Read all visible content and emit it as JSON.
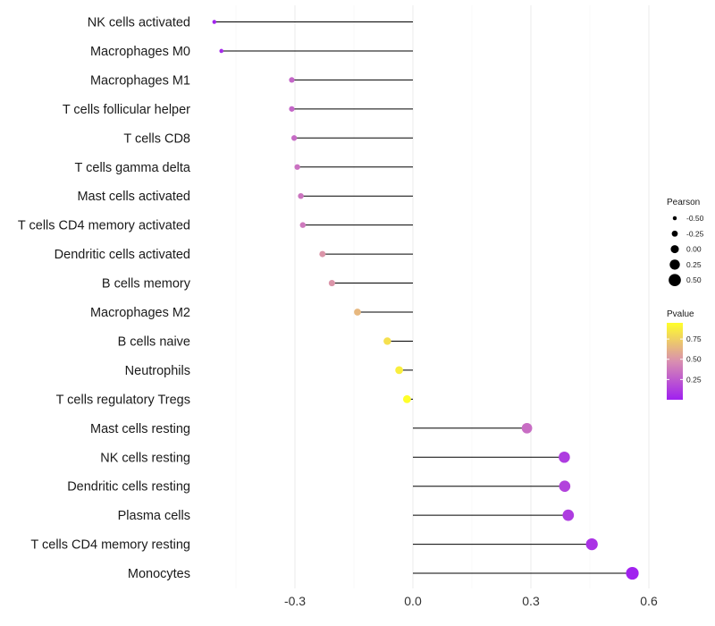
{
  "chart_data": {
    "type": "lollipop",
    "title": "",
    "xlabel": "",
    "ylabel": "",
    "xlim": [
      -0.62,
      0.62
    ],
    "x_ticks": [
      -0.3,
      0.0,
      0.3,
      0.6
    ],
    "x_tick_labels": [
      "-0.3",
      "0.0",
      "0.3",
      "0.6"
    ],
    "x_minor_gridlines": [
      -0.45,
      -0.15,
      0.15,
      0.45
    ],
    "grid": true,
    "baseline": 0,
    "categories": [
      "NK cells activated",
      "Macrophages M0",
      "Macrophages M1",
      "T cells follicular helper",
      "T cells CD8",
      "T cells gamma delta",
      "Mast cells activated",
      "T cells CD4 memory activated",
      "Dendritic cells activated",
      "B cells memory",
      "Macrophages M2",
      "B cells naive",
      "Neutrophils",
      "T cells regulatory  Tregs ",
      "Mast cells resting",
      "NK cells resting",
      "Dendritic cells resting",
      "Plasma cells",
      "T cells CD4 memory resting",
      "Monocytes"
    ],
    "pearson": [
      -0.505,
      -0.487,
      -0.308,
      -0.308,
      -0.302,
      -0.294,
      -0.285,
      -0.28,
      -0.23,
      -0.206,
      -0.141,
      -0.065,
      -0.035,
      -0.015,
      0.29,
      0.385,
      0.386,
      0.395,
      0.455,
      0.558
    ],
    "pvalue": [
      0.02,
      0.05,
      0.3,
      0.3,
      0.32,
      0.35,
      0.36,
      0.38,
      0.5,
      0.5,
      0.65,
      0.82,
      0.88,
      0.95,
      0.33,
      0.12,
      0.15,
      0.12,
      0.08,
      0.01
    ],
    "size_legend": {
      "title": "Pearson",
      "values": [
        -0.5,
        -0.25,
        0.0,
        0.25,
        0.5
      ],
      "labels": [
        "-0.50",
        "-0.25",
        "0.00",
        "0.25",
        "0.50"
      ]
    },
    "color_legend": {
      "title": "Pvalue",
      "range": [
        0.0,
        0.95
      ],
      "ticks": [
        0.25,
        0.5,
        0.75
      ],
      "tick_labels": [
        "0.25",
        "0.50",
        "0.75"
      ],
      "low_color": "#a020f0",
      "mid_color": "#d98fb0",
      "high_color": "#ffff2a"
    },
    "stem_color": "#000000",
    "grid_color": "#ebebeb"
  }
}
